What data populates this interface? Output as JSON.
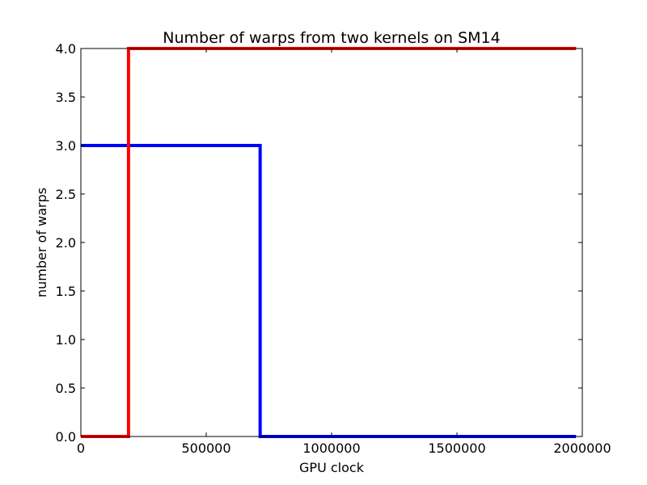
{
  "chart_data": {
    "type": "line",
    "title": "Number of warps from two kernels on SM14",
    "xlabel": "GPU clock",
    "ylabel": "number of warps",
    "xlim": [
      0,
      2000000
    ],
    "ylim": [
      0,
      4.0
    ],
    "xticks": [
      0,
      500000,
      1000000,
      1500000,
      2000000
    ],
    "xtick_labels": [
      "0",
      "500000",
      "1000000",
      "1500000",
      "2000000"
    ],
    "yticks": [
      0,
      0.5,
      1.0,
      1.5,
      2.0,
      2.5,
      3.0,
      3.5,
      4.0
    ],
    "ytick_labels": [
      "0.0",
      "0.5",
      "1.0",
      "1.5",
      "2.0",
      "2.5",
      "3.0",
      "3.5",
      "4.0"
    ],
    "grid": false,
    "series": [
      {
        "color": "#0000ff",
        "step": "post",
        "x": [
          0,
          715000,
          715000,
          1975000
        ],
        "y": [
          3,
          3,
          0,
          0
        ]
      },
      {
        "color": "#ff0000",
        "step": "post",
        "x": [
          0,
          190000,
          190000,
          1975000
        ],
        "y": [
          0,
          0,
          4,
          4
        ]
      }
    ]
  }
}
